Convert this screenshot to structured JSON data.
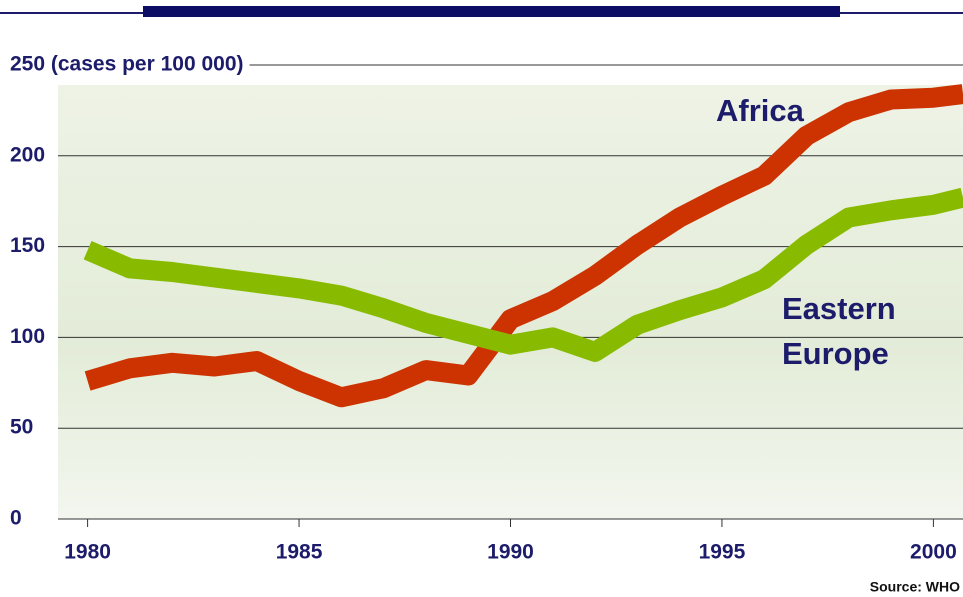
{
  "chart_data": {
    "type": "line",
    "x": [
      1980,
      1981,
      1982,
      1983,
      1984,
      1985,
      1986,
      1987,
      1988,
      1989,
      1990,
      1991,
      1992,
      1993,
      1994,
      1995,
      1996,
      1997,
      1998,
      1999,
      2000,
      2000.7
    ],
    "series": [
      {
        "name": "Africa",
        "color": "#cc3300",
        "values": [
          76,
          83,
          86,
          84,
          87,
          76,
          67,
          72,
          82,
          79,
          110,
          120,
          134,
          151,
          166,
          178,
          189,
          211,
          224,
          231,
          232,
          234
        ]
      },
      {
        "name": "Eastern Europe",
        "color": "#88bb00",
        "values": [
          148,
          138,
          136,
          133,
          130,
          127,
          123,
          116,
          108,
          102,
          96,
          100,
          92,
          107,
          115,
          122,
          132,
          151,
          166,
          170,
          173,
          177
        ]
      }
    ],
    "xlim": [
      1979.3,
      2000.7
    ],
    "xticks": [
      1980,
      1985,
      1990,
      1995,
      2000
    ],
    "ylim": [
      0,
      250
    ],
    "yticks": [
      0,
      50,
      100,
      150,
      200,
      {
        "value": 250,
        "label": "250 (cases per 100 000)"
      }
    ],
    "grid": true,
    "annotations": [
      "Africa",
      "Eastern",
      "Europe"
    ],
    "source": "Source: WHO"
  }
}
